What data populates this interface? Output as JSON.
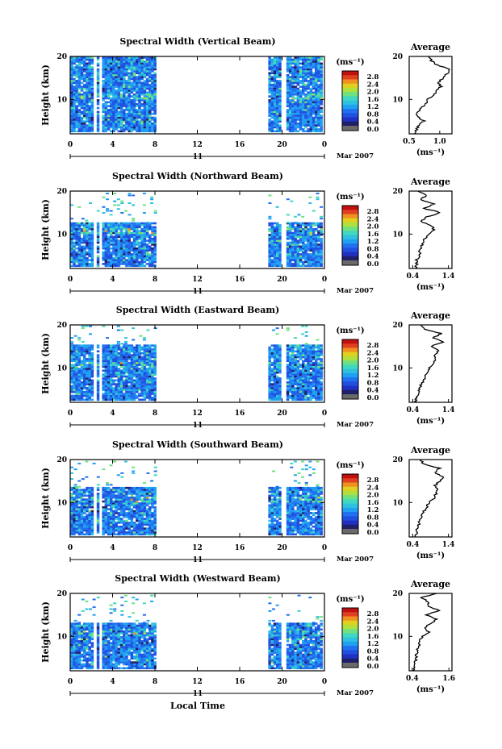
{
  "figure": {
    "xlabel": "Local Time",
    "date_label": "Mar 2007",
    "day_label": "11"
  },
  "colors": {
    "scale": [
      "#20206a",
      "#2030c0",
      "#2050e0",
      "#2070f0",
      "#20a0f0",
      "#30c0e0",
      "#40d8c0",
      "#70e080",
      "#b0e040",
      "#e0d020",
      "#f09020",
      "#e04020",
      "#c01010"
    ],
    "gray": "#6a6a6a",
    "line": "#000000"
  },
  "chart_data": [
    {
      "type": "heatmap",
      "title": "Spectral Width (Vertical Beam)",
      "ylabel": "Height (km)",
      "xlim": [
        0,
        24
      ],
      "ylim": [
        2,
        20
      ],
      "xticks": [
        "0",
        "4",
        "8",
        "12",
        "16",
        "20",
        "0"
      ],
      "yticks": [
        "20",
        "10"
      ],
      "data_segments": [
        [
          0,
          2.2
        ],
        [
          2.5,
          2.7
        ],
        [
          3.0,
          8.0
        ],
        [
          18.7,
          19.7
        ],
        [
          20.4,
          23.7
        ]
      ],
      "data_top_km": 19.5,
      "colorbar": {
        "unit": "(ms⁻¹)",
        "ticks": [
          "2.8",
          "2.4",
          "2.0",
          "1.6",
          "1.2",
          "0.8",
          "0.4",
          "0.0"
        ]
      },
      "average": {
        "title": "Average",
        "xlabel": "(ms⁻¹)",
        "xlim": [
          0.5,
          1.2
        ],
        "xticks": [
          "0.5",
          "1.0"
        ],
        "height_km": [
          2,
          3,
          4,
          5,
          6,
          7,
          8,
          9,
          10,
          11,
          12,
          13,
          14,
          15,
          16,
          17,
          18,
          19,
          20
        ],
        "spectral_width": [
          0.58,
          0.62,
          0.66,
          0.74,
          0.63,
          0.64,
          0.7,
          0.77,
          0.8,
          0.9,
          0.95,
          1.02,
          0.98,
          1.06,
          1.12,
          1.18,
          0.96,
          0.86,
          0.82
        ]
      }
    },
    {
      "type": "heatmap",
      "title": "Spectral Width (Northward Beam)",
      "ylabel": "Height (km)",
      "xlim": [
        0,
        24
      ],
      "ylim": [
        2,
        20
      ],
      "xticks": [
        "0",
        "4",
        "8",
        "12",
        "16",
        "20",
        "0"
      ],
      "yticks": [
        "20",
        "10"
      ],
      "data_segments": [
        [
          0,
          2.2
        ],
        [
          2.5,
          2.7
        ],
        [
          3.0,
          8.0
        ],
        [
          18.7,
          19.7
        ],
        [
          20.4,
          23.7
        ]
      ],
      "data_top_km": 12.5,
      "colorbar": {
        "unit": "(ms⁻¹)",
        "ticks": [
          "2.8",
          "2.4",
          "2.0",
          "1.6",
          "1.2",
          "0.8",
          "0.4",
          "0.0"
        ]
      },
      "average": {
        "title": "Average",
        "xlabel": "(ms⁻¹)",
        "xlim": [
          0.3,
          1.5
        ],
        "xticks": [
          "0.4",
          "1.4"
        ],
        "height_km": [
          2,
          3,
          4,
          5,
          6,
          7,
          8,
          9,
          10,
          11,
          12,
          13,
          14,
          15,
          16,
          17,
          18,
          19,
          20
        ],
        "spectral_width": [
          0.48,
          0.52,
          0.5,
          0.6,
          0.58,
          0.64,
          0.7,
          0.74,
          0.86,
          1.0,
          0.92,
          0.62,
          0.8,
          1.18,
          0.7,
          1.02,
          0.6,
          0.78,
          0.55
        ]
      }
    },
    {
      "type": "heatmap",
      "title": "Spectral Width (Eastward Beam)",
      "ylabel": "Height (km)",
      "xlim": [
        0,
        24
      ],
      "ylim": [
        2,
        20
      ],
      "xticks": [
        "0",
        "4",
        "8",
        "12",
        "16",
        "20",
        "0"
      ],
      "yticks": [
        "20",
        "10"
      ],
      "data_segments": [
        [
          0,
          2.2
        ],
        [
          2.5,
          2.7
        ],
        [
          3.0,
          8.0
        ],
        [
          18.7,
          19.7
        ],
        [
          20.4,
          23.7
        ]
      ],
      "data_top_km": 15.0,
      "colorbar": {
        "unit": "(ms⁻¹)",
        "ticks": [
          "2.8",
          "2.4",
          "2.0",
          "1.6",
          "1.2",
          "0.8",
          "0.4",
          "0.0"
        ]
      },
      "average": {
        "title": "Average",
        "xlabel": "(ms⁻¹)",
        "xlim": [
          0.3,
          1.5
        ],
        "xticks": [
          "0.4",
          "1.4"
        ],
        "height_km": [
          2,
          3,
          4,
          5,
          6,
          7,
          8,
          9,
          10,
          11,
          12,
          13,
          14,
          15,
          16,
          17,
          18,
          19,
          20
        ],
        "spectral_width": [
          0.5,
          0.48,
          0.55,
          0.58,
          0.62,
          0.7,
          0.75,
          0.82,
          0.88,
          0.95,
          1.05,
          1.02,
          1.12,
          0.92,
          1.25,
          0.98,
          1.2,
          0.7,
          0.62
        ]
      }
    },
    {
      "type": "heatmap",
      "title": "Spectral Width (Southward Beam)",
      "ylabel": "Height (km)",
      "xlim": [
        0,
        24
      ],
      "ylim": [
        2,
        20
      ],
      "xticks": [
        "0",
        "4",
        "8",
        "12",
        "16",
        "20",
        "0"
      ],
      "yticks": [
        "20",
        "10"
      ],
      "data_segments": [
        [
          0,
          2.2
        ],
        [
          2.5,
          2.7
        ],
        [
          3.0,
          8.0
        ],
        [
          18.7,
          19.7
        ],
        [
          20.4,
          23.7
        ]
      ],
      "data_top_km": 13.5,
      "colorbar": {
        "unit": "(ms⁻¹)",
        "ticks": [
          "2.8",
          "2.4",
          "2.0",
          "1.6",
          "1.2",
          "0.8",
          "0.4",
          "0.0"
        ]
      },
      "average": {
        "title": "Average",
        "xlabel": "(ms⁻¹)",
        "xlim": [
          0.3,
          1.5
        ],
        "xticks": [
          "0.4",
          "1.4"
        ],
        "height_km": [
          2,
          3,
          4,
          5,
          6,
          7,
          8,
          9,
          10,
          11,
          12,
          13,
          14,
          15,
          16,
          17,
          18,
          19,
          20
        ],
        "spectral_width": [
          0.48,
          0.5,
          0.52,
          0.58,
          0.6,
          0.66,
          0.72,
          0.8,
          0.86,
          1.0,
          1.05,
          1.1,
          1.02,
          1.18,
          1.26,
          1.0,
          1.15,
          0.7,
          0.62
        ]
      }
    },
    {
      "type": "heatmap",
      "title": "Spectral Width (Westward Beam)",
      "ylabel": "Height (km)",
      "xlim": [
        0,
        24
      ],
      "ylim": [
        2,
        20
      ],
      "xticks": [
        "0",
        "4",
        "8",
        "12",
        "16",
        "20",
        "0"
      ],
      "yticks": [
        "20",
        "10"
      ],
      "data_segments": [
        [
          0,
          2.2
        ],
        [
          2.5,
          2.7
        ],
        [
          3.0,
          8.0
        ],
        [
          18.7,
          19.7
        ],
        [
          20.4,
          23.7
        ]
      ],
      "data_top_km": 13.0,
      "colorbar": {
        "unit": "(ms⁻¹)",
        "ticks": [
          "2.8",
          "2.4",
          "2.0",
          "1.6",
          "1.2",
          "0.8",
          "0.4",
          "0.0"
        ]
      },
      "average": {
        "title": "Average",
        "xlabel": "(ms⁻¹)",
        "xlim": [
          0.3,
          1.7
        ],
        "xticks": [
          "0.4",
          "1.6"
        ],
        "height_km": [
          2,
          3,
          4,
          5,
          6,
          7,
          8,
          9,
          10,
          11,
          12,
          13,
          14,
          15,
          16,
          17,
          18,
          19,
          20
        ],
        "spectral_width": [
          0.45,
          0.48,
          0.5,
          0.52,
          0.55,
          0.58,
          0.62,
          0.66,
          0.72,
          0.95,
          0.8,
          1.0,
          1.2,
          0.85,
          1.3,
          0.9,
          0.95,
          0.7,
          1.2
        ]
      }
    }
  ]
}
